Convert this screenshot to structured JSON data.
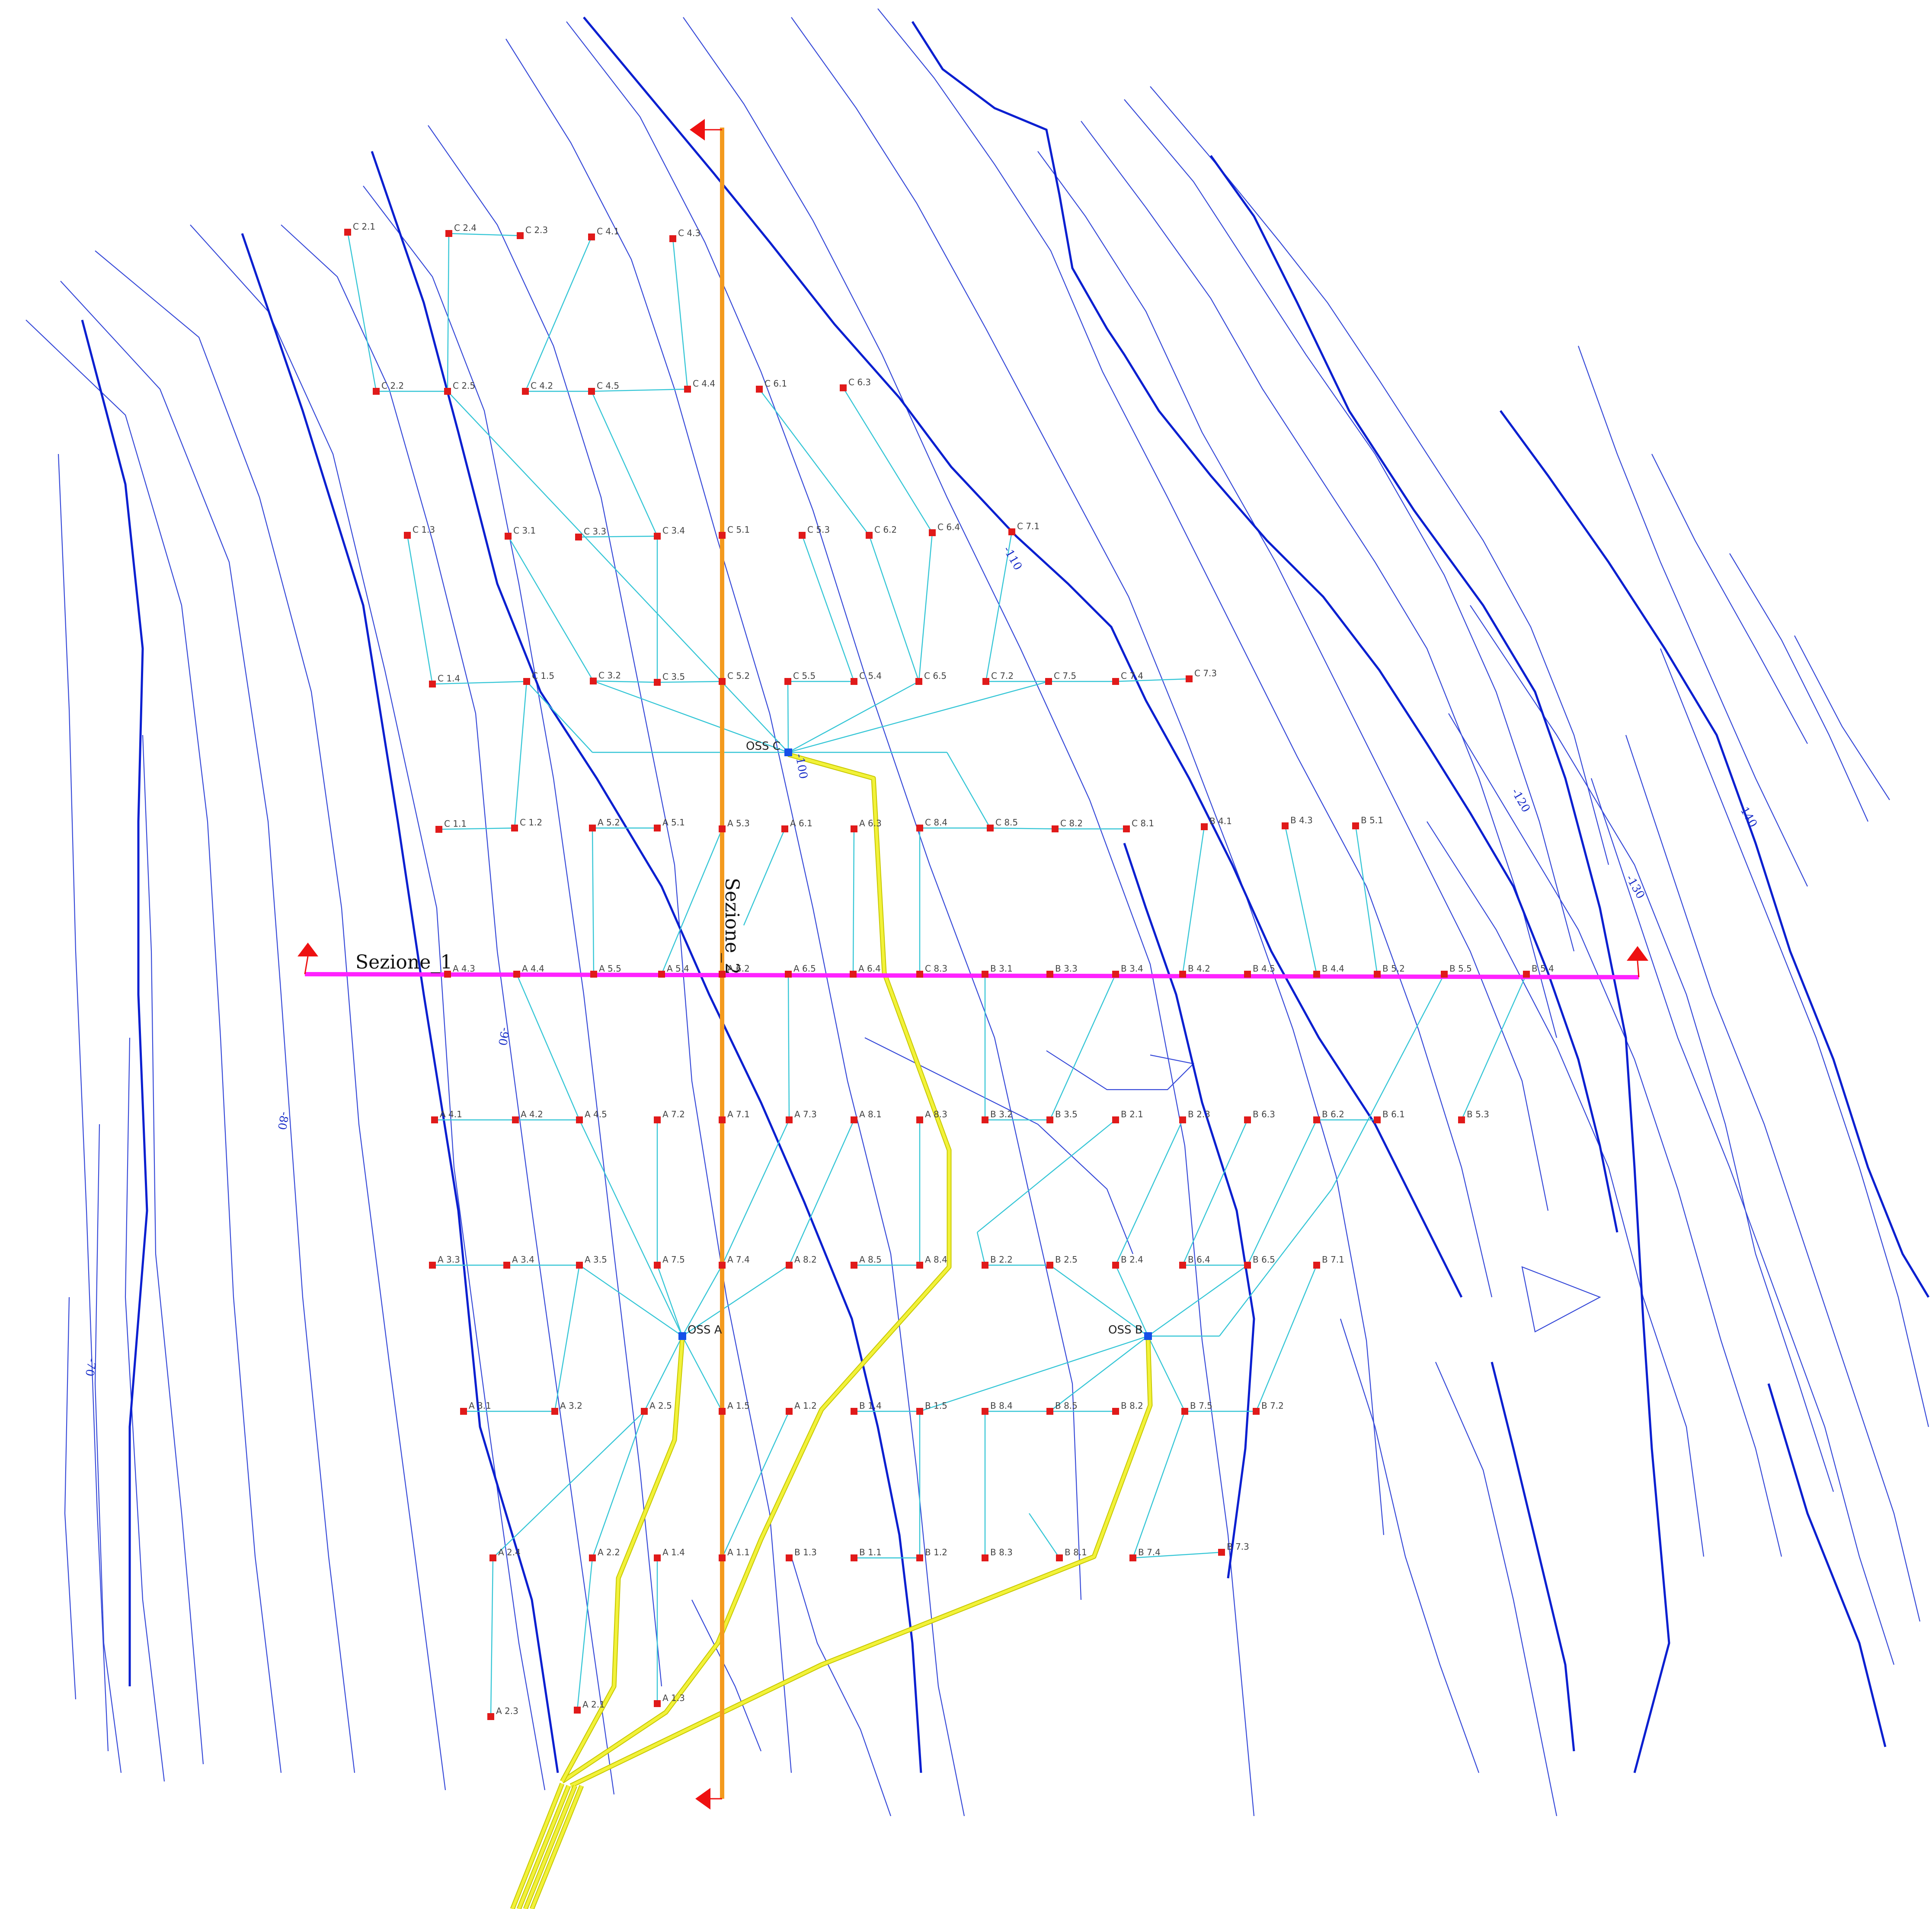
{
  "colors": {
    "contour_minor": "#3548d8",
    "contour_major": "#0a1fd0",
    "link": "#35c6d6",
    "node": "#e01a1a",
    "oss": "#1550e8",
    "cable": "#f2f23a",
    "section_1": "#ff22ff",
    "section_2": "#f39a1e",
    "arrow": "#ee1111"
  },
  "sections": [
    {
      "id": "sezione-1",
      "label": "Sezione_1"
    },
    {
      "id": "sezione-2",
      "label": "Sezione_2"
    }
  ],
  "contour_labels": [
    "-70",
    "-80",
    "-90",
    "-100",
    "-110",
    "-120",
    "-130",
    "-140"
  ],
  "substations": [
    {
      "id": "oss-c",
      "label": "OSS C"
    },
    {
      "id": "oss-a",
      "label": "OSS A"
    },
    {
      "id": "oss-b",
      "label": "OSS B"
    }
  ],
  "turbines": [
    "C 2.1",
    "C 2.4",
    "C 2.3",
    "C 4.1",
    "C 4.3",
    "C 2.2",
    "C 2.5",
    "C 4.2",
    "C 4.5",
    "C 4.4",
    "C 6.1",
    "C 6.3",
    "C 1.3",
    "C 3.1",
    "C 3.3",
    "C 3.4",
    "C 5.1",
    "C 5.3",
    "C 6.2",
    "C 6.4",
    "C 7.1",
    "C 1.4",
    "C 1.5",
    "C 3.2",
    "C 3.5",
    "C 5.2",
    "C 5.5",
    "C 5.4",
    "C 6.5",
    "C 7.2",
    "C 7.5",
    "C 7.4",
    "C 7.3",
    "C 1.1",
    "C 1.2",
    "A 5.2",
    "A 5.1",
    "A 5.3",
    "A 6.1",
    "A 6.3",
    "C 8.4",
    "C 8.5",
    "C 8.2",
    "C 8.1",
    "B 4.1",
    "B 4.3",
    "B 5.1",
    "A 4.3",
    "A 4.4",
    "A 5.5",
    "A 5.4",
    "A 6.2",
    "A 6.5",
    "A 6.4",
    "C 8.3",
    "B 3.1",
    "B 3.3",
    "B 3.4",
    "B 4.2",
    "B 4.5",
    "B 4.4",
    "B 5.2",
    "B 5.5",
    "B 5.4",
    "A 4.1",
    "A 4.2",
    "A 4.5",
    "A 7.2",
    "A 7.1",
    "A 7.3",
    "A 8.1",
    "A 8.3",
    "B 3.2",
    "B 3.5",
    "B 2.1",
    "B 2.3",
    "B 6.3",
    "B 6.2",
    "B 6.1",
    "B 5.3",
    "A 3.3",
    "A 3.4",
    "A 3.5",
    "A 7.5",
    "A 7.4",
    "A 8.2",
    "A 8.5",
    "A 8.4",
    "B 2.2",
    "B 2.5",
    "B 2.4",
    "B 6.4",
    "B 6.5",
    "B 7.1",
    "A 3.1",
    "A 3.2",
    "A 2.5",
    "A 1.5",
    "A 1.2",
    "B 1.4",
    "B 1.5",
    "B 8.4",
    "B 8.5",
    "B 8.2",
    "B 7.5",
    "B 7.2",
    "A 2.4",
    "A 2.2",
    "A 1.4",
    "A 1.1",
    "B 1.3",
    "B 1.1",
    "B 1.2",
    "B 8.3",
    "B 8.1",
    "B 7.4",
    "B 7.3",
    "A 2.3",
    "A 2.1",
    "A 1.3"
  ]
}
